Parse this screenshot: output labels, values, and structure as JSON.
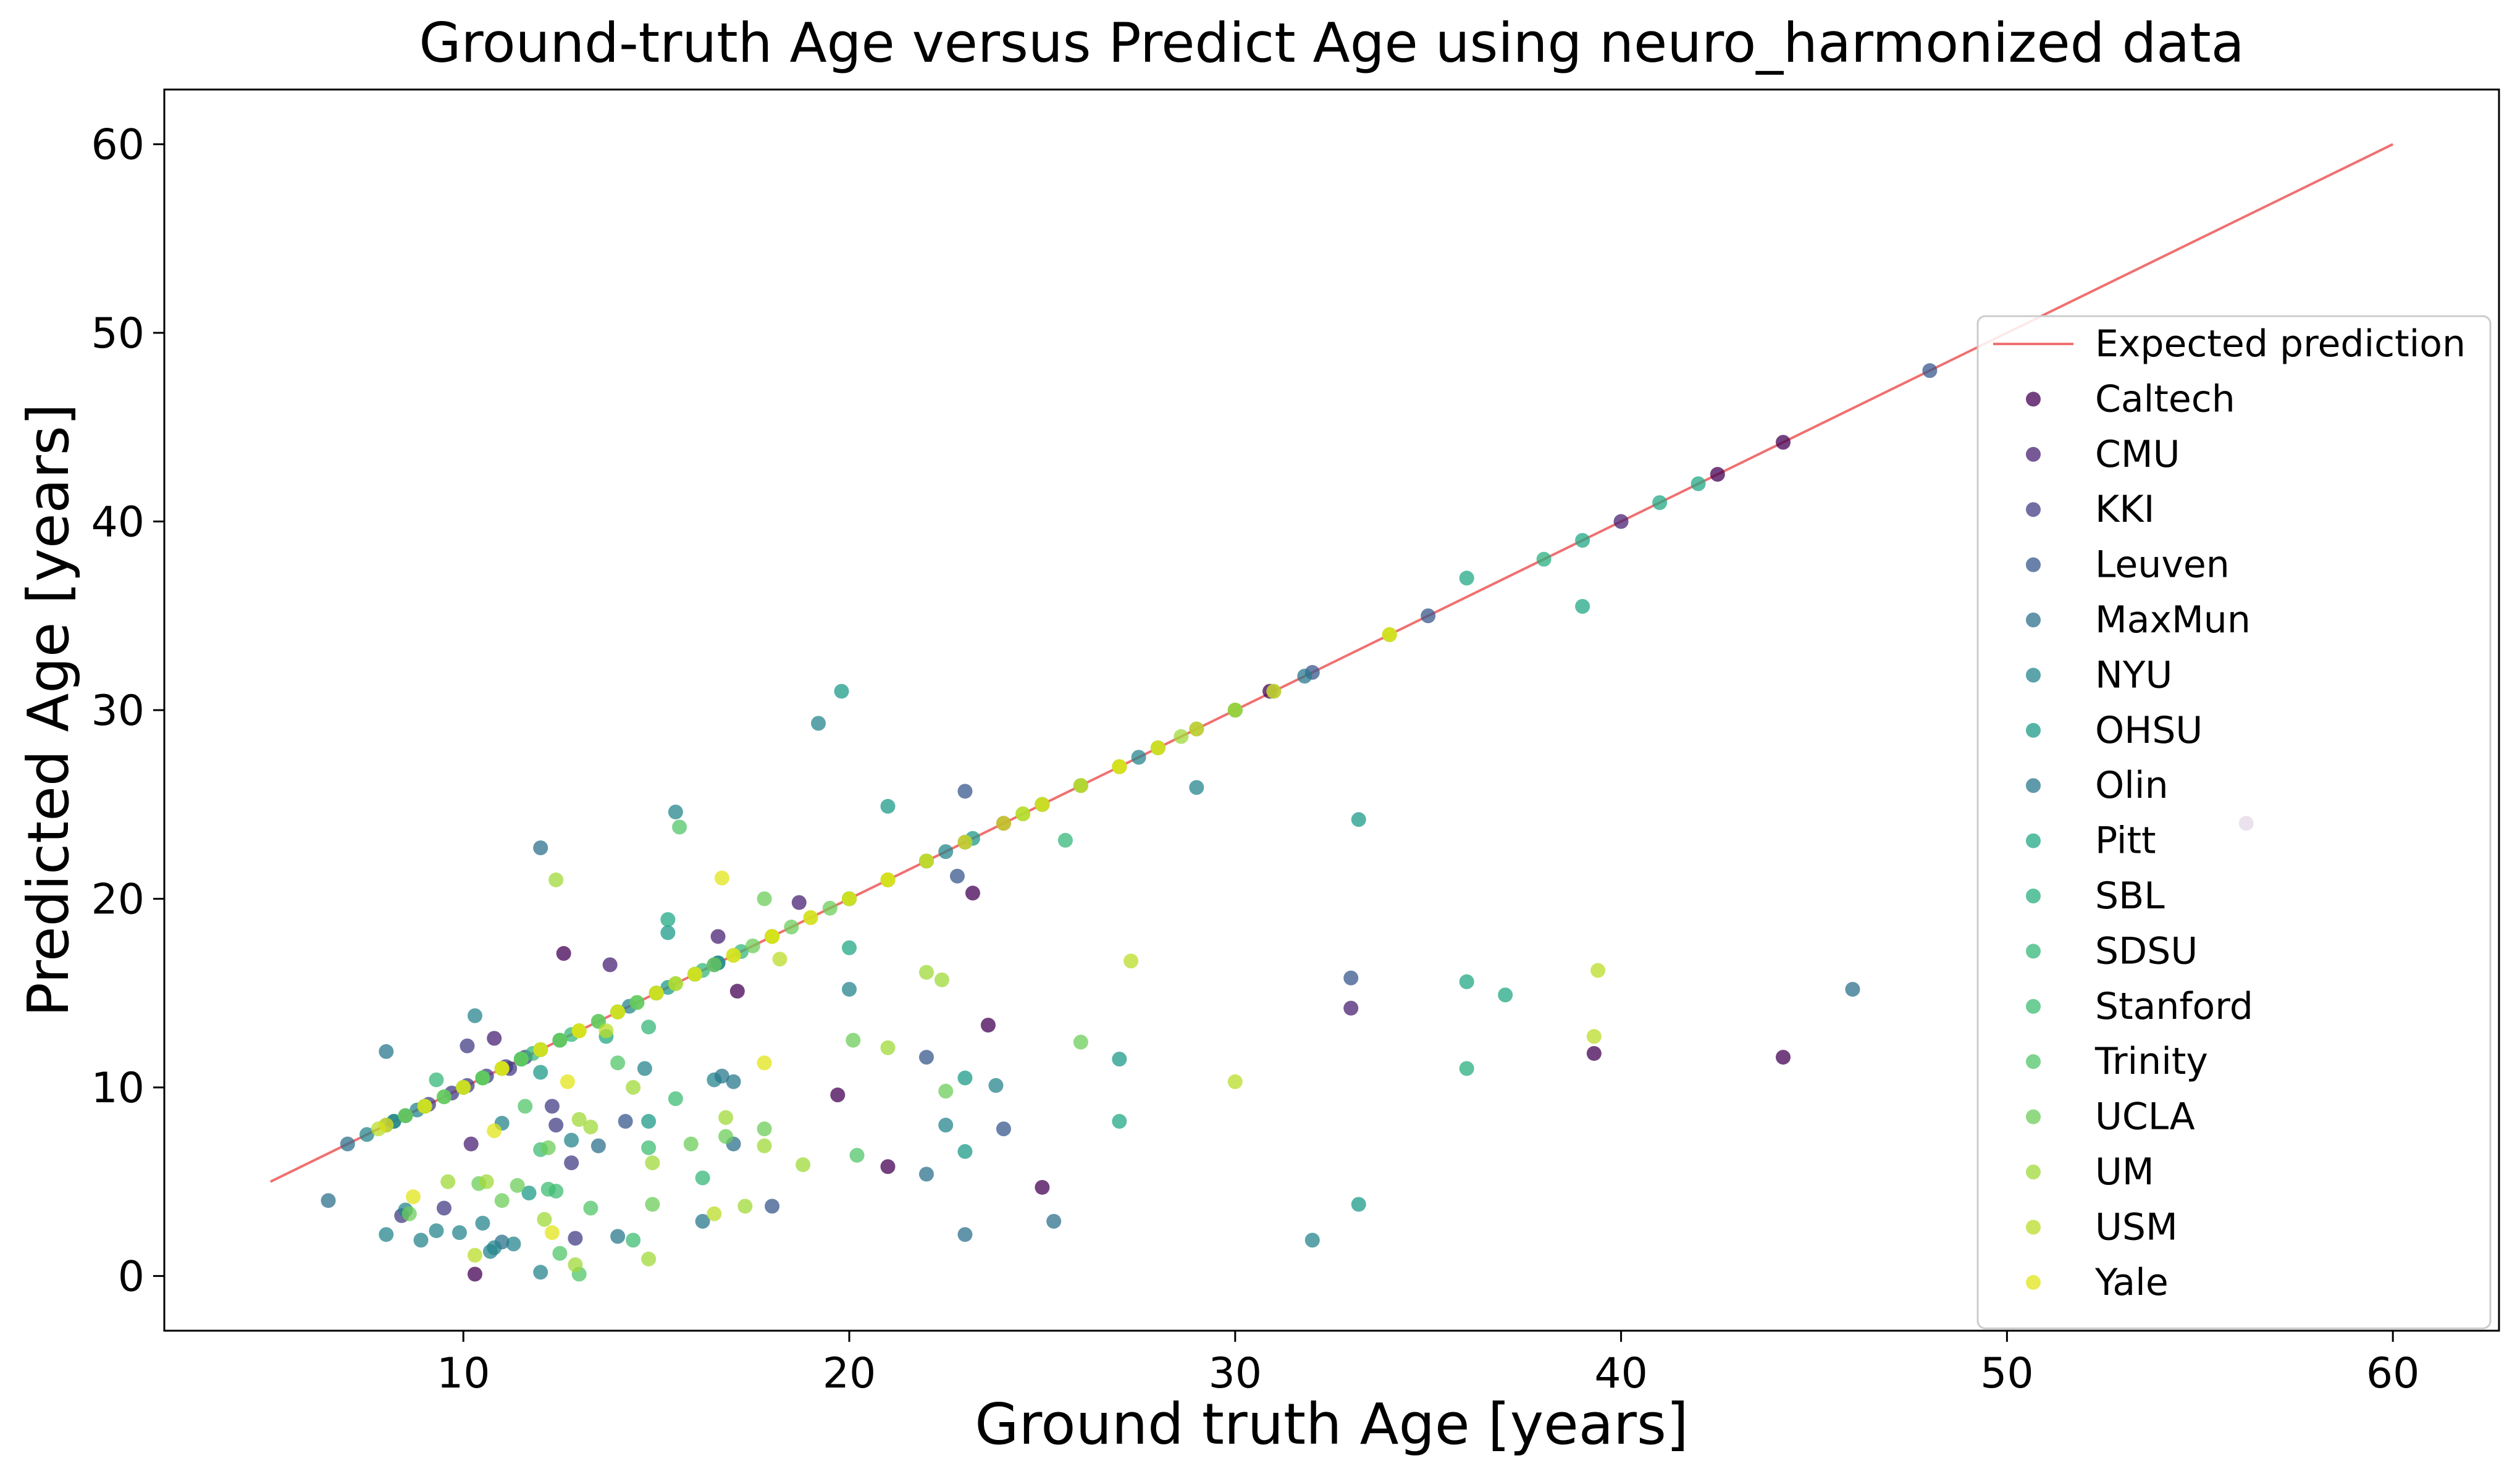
{
  "chart_data": {
    "type": "scatter",
    "title": "Ground-truth Age versus Predict Age using neuro_harmonized data",
    "xlabel": "Ground truth Age [years]",
    "ylabel": "Predicted Age [years]",
    "xlim": [
      2.25,
      62.75
    ],
    "ylim": [
      -2.9,
      62.9
    ],
    "xticks": [
      10,
      20,
      30,
      40,
      50,
      60
    ],
    "yticks": [
      0,
      10,
      20,
      30,
      40,
      50,
      60
    ],
    "grid": false,
    "legend_position": "center-right",
    "reference_line": {
      "name": "Expected prediction",
      "color": "#f07070",
      "x": [
        5,
        60
      ],
      "y": [
        5,
        60
      ]
    },
    "series": [
      {
        "name": "Caltech",
        "color": "#440154",
        "x": [
          17.1,
          19.7,
          21.0,
          23.2,
          23.6,
          25.0,
          30.9,
          42.5,
          44.2,
          39.3,
          44.2,
          56.2,
          12.6,
          10.3
        ],
        "y": [
          15.1,
          9.6,
          5.8,
          20.3,
          13.3,
          4.7,
          31.0,
          42.5,
          44.2,
          11.8,
          11.6,
          24.0,
          17.1,
          0.1
        ]
      },
      {
        "name": "CMU",
        "color": "#482173",
        "x": [
          18.7,
          24.0,
          33.0,
          40.0,
          10.2,
          10.8,
          16.6,
          13.8
        ],
        "y": [
          19.8,
          24.0,
          14.2,
          40.0,
          7.0,
          12.6,
          18.0,
          16.5
        ]
      },
      {
        "name": "KKI",
        "color": "#433e85",
        "x": [
          8.2,
          8.5,
          9.1,
          9.7,
          10.1,
          10.6,
          11.1,
          11.6,
          12.3,
          12.8,
          9.5,
          10.1,
          11.2,
          12.4,
          12.9,
          8.4
        ],
        "y": [
          8.2,
          8.5,
          9.1,
          9.7,
          10.1,
          10.6,
          11.1,
          11.6,
          9.0,
          6.0,
          3.6,
          12.2,
          11.0,
          8.0,
          2.0,
          3.2
        ]
      },
      {
        "name": "Leuven",
        "color": "#38588c",
        "x": [
          16.6,
          22.0,
          23.0,
          25.0,
          32.0,
          35.0,
          48.0,
          22.0,
          23.0,
          33.0,
          14.2,
          18.0,
          22.8,
          24.0
        ],
        "y": [
          16.6,
          22.0,
          23.0,
          25.0,
          32.0,
          35.0,
          48.0,
          11.6,
          25.7,
          15.8,
          8.2,
          3.7,
          21.2,
          7.8
        ]
      },
      {
        "name": "MaxMun",
        "color": "#2d708e",
        "x": [
          7.0,
          21.0,
          27.0,
          29.0,
          31.0,
          46.0,
          12.0,
          6.5,
          11.0,
          13.5,
          22.0,
          25.3,
          17.0,
          23.0
        ],
        "y": [
          7.0,
          21.0,
          27.0,
          29.0,
          31.0,
          15.2,
          22.7,
          4.0,
          1.8,
          6.9,
          5.4,
          2.9,
          7.0,
          2.2
        ]
      },
      {
        "name": "NYU",
        "color": "#25858e",
        "x": [
          7.5,
          8.8,
          10.0,
          11.5,
          12.5,
          14.3,
          16.0,
          18.0,
          20.0,
          22.5,
          25.0,
          27.5,
          30.0,
          8.0,
          8.9,
          9.9,
          10.5,
          10.8,
          11.3,
          12.0,
          10.3,
          15.5,
          16.5,
          19.2,
          20.0,
          22.5,
          23.8,
          29.0,
          32.0,
          12.8,
          14.7,
          8.5,
          9.3,
          10.7,
          11.0
        ],
        "y": [
          7.5,
          8.8,
          10.0,
          11.5,
          12.5,
          14.3,
          16.0,
          18.0,
          20.0,
          22.5,
          25.0,
          27.5,
          30.0,
          2.2,
          1.9,
          2.3,
          2.8,
          1.5,
          1.7,
          0.2,
          13.8,
          24.6,
          10.4,
          29.3,
          15.2,
          8.0,
          10.1,
          25.9,
          1.9,
          7.2,
          11.0,
          3.5,
          2.4,
          1.3,
          8.1
        ]
      },
      {
        "name": "OHSU",
        "color": "#1e9b8a",
        "x": [
          8.2,
          9.0,
          10.0,
          11.5,
          12.0,
          13.0,
          14.0,
          15.3,
          16.6,
          19.8,
          21.0,
          23.0,
          27.0,
          33.2,
          12.0,
          14.8,
          15.3,
          23.0,
          33.2,
          26.0,
          23.2,
          11.7
        ],
        "y": [
          8.2,
          9.0,
          10.0,
          11.5,
          12.0,
          13.0,
          14.0,
          15.3,
          16.6,
          31.0,
          24.9,
          10.5,
          11.5,
          3.8,
          10.8,
          8.2,
          18.2,
          6.6,
          24.2,
          26.0,
          23.2,
          4.4
        ]
      },
      {
        "name": "Olin",
        "color": "#2a788e",
        "x": [
          8.0,
          9.0,
          10.5,
          15.0,
          16.5,
          20.0,
          28.0,
          31.8,
          8.0,
          14.0,
          16.2,
          16.7,
          17.0
        ],
        "y": [
          8.0,
          9.0,
          10.5,
          15.0,
          16.5,
          20.0,
          28.0,
          31.8,
          11.9,
          2.1,
          2.9,
          10.6,
          10.3
        ]
      },
      {
        "name": "Pitt",
        "color": "#22a884",
        "x": [
          15.0,
          20.0,
          26.0,
          36.0,
          39.0,
          41.0,
          42.0,
          36.0,
          37.0,
          39.0,
          27.0,
          20.0,
          15.3,
          13.7
        ],
        "y": [
          15.0,
          20.0,
          26.0,
          37.0,
          39.0,
          41.0,
          42.0,
          15.6,
          14.9,
          35.5,
          8.2,
          17.4,
          18.9,
          12.7
        ]
      },
      {
        "name": "SBL",
        "color": "#29af7f",
        "x": [
          30.0,
          34.0,
          38.0,
          36.0
        ],
        "y": [
          30.0,
          34.0,
          38.0,
          11.0
        ]
      },
      {
        "name": "SDSU",
        "color": "#35b779",
        "x": [
          9.0,
          10.5,
          11.8,
          12.8,
          14.0,
          15.0,
          16.2,
          17.2,
          14.8,
          16.2,
          25.6,
          9.3
        ],
        "y": [
          9.0,
          10.5,
          11.8,
          12.8,
          14.0,
          15.0,
          16.2,
          17.2,
          13.2,
          5.2,
          23.1,
          10.4
        ]
      },
      {
        "name": "Stanford",
        "color": "#3fbc73",
        "x": [
          8.5,
          9.5,
          10.5,
          11.5,
          12.5,
          13.5,
          14.5,
          12.0,
          12.4,
          15.5,
          14.8,
          12.2,
          14.4
        ],
        "y": [
          8.5,
          9.5,
          10.5,
          11.5,
          12.5,
          13.5,
          14.5,
          6.7,
          4.5,
          9.4,
          6.8,
          4.6,
          1.9
        ]
      },
      {
        "name": "Trinity",
        "color": "#52c569",
        "x": [
          12.0,
          14.0,
          16.0,
          18.0,
          20.0,
          22.0,
          15.6,
          20.2,
          14.0,
          11.6,
          12.5,
          13.0,
          13.3
        ],
        "y": [
          12.0,
          14.0,
          16.0,
          18.0,
          20.0,
          22.0,
          23.8,
          6.4,
          11.3,
          9.0,
          1.2,
          0.1,
          3.6
        ]
      },
      {
        "name": "UCLA",
        "color": "#6ccd5a",
        "x": [
          8.5,
          9.5,
          10.5,
          11.5,
          12.5,
          13.5,
          14.5,
          15.5,
          16.5,
          17.5,
          18.5,
          19.5,
          8.6,
          10.4,
          11.0,
          11.4,
          12.2,
          14.9,
          15.9,
          16.8,
          17.8,
          17.8,
          20.1,
          22.5,
          26.0
        ],
        "y": [
          8.5,
          9.5,
          10.5,
          11.5,
          12.5,
          13.5,
          14.5,
          15.5,
          16.5,
          17.5,
          18.5,
          19.5,
          3.3,
          4.9,
          4.0,
          4.8,
          6.8,
          3.8,
          7.0,
          7.4,
          7.8,
          20.0,
          12.5,
          9.8,
          12.4
        ]
      },
      {
        "name": "UM",
        "color": "#a0da39",
        "x": [
          9.0,
          10.0,
          11.0,
          12.0,
          13.0,
          14.0,
          15.0,
          16.0,
          17.0,
          18.0,
          19.0,
          20.0,
          21.0,
          24.5,
          25.0,
          27.0,
          28.0,
          28.6,
          9.6,
          10.6,
          12.1,
          12.4,
          13.0,
          13.3,
          14.4,
          14.9,
          16.8,
          17.8,
          18.8,
          21.0,
          22.0,
          22.4,
          17.3,
          12.9,
          14.8
        ],
        "y": [
          9.0,
          10.0,
          11.0,
          12.0,
          13.0,
          14.0,
          15.0,
          16.0,
          17.0,
          18.0,
          19.0,
          20.0,
          21.0,
          24.5,
          25.0,
          27.0,
          28.0,
          28.6,
          5.0,
          5.0,
          3.0,
          21.0,
          8.3,
          7.9,
          10.0,
          6.0,
          8.4,
          6.9,
          5.9,
          12.1,
          16.1,
          15.7,
          3.7,
          0.6,
          0.9
        ]
      },
      {
        "name": "USM",
        "color": "#bade28",
        "x": [
          7.8,
          11.0,
          13.0,
          15.5,
          18.0,
          21.0,
          24.5,
          27.0,
          30.0,
          34.0,
          39.3,
          39.4,
          27.3,
          30.0,
          18.2,
          16.5,
          13.7,
          10.3
        ],
        "y": [
          7.8,
          11.0,
          13.0,
          15.5,
          18.0,
          21.0,
          24.5,
          27.0,
          30.0,
          34.0,
          12.7,
          16.2,
          16.7,
          10.3,
          16.8,
          3.3,
          13.0,
          1.1
        ]
      },
      {
        "name": "Yale",
        "color": "#e2e418",
        "x": [
          8.0,
          9.0,
          10.0,
          11.0,
          12.0,
          13.0,
          14.0,
          15.0,
          16.0,
          17.0,
          18.0,
          19.0,
          20.0,
          21.0,
          22.0,
          23.0,
          24.0,
          25.0,
          26.0,
          27.0,
          28.0,
          29.0,
          31.0,
          34.0,
          16.7,
          17.8,
          10.8,
          8.7,
          12.3,
          12.7
        ],
        "y": [
          8.0,
          9.0,
          10.0,
          11.0,
          12.0,
          13.0,
          14.0,
          15.0,
          16.0,
          17.0,
          18.0,
          19.0,
          20.0,
          21.0,
          22.0,
          23.0,
          24.0,
          25.0,
          26.0,
          27.0,
          28.0,
          29.0,
          31.0,
          34.0,
          21.1,
          11.3,
          7.7,
          4.2,
          2.3,
          10.3
        ]
      }
    ]
  }
}
